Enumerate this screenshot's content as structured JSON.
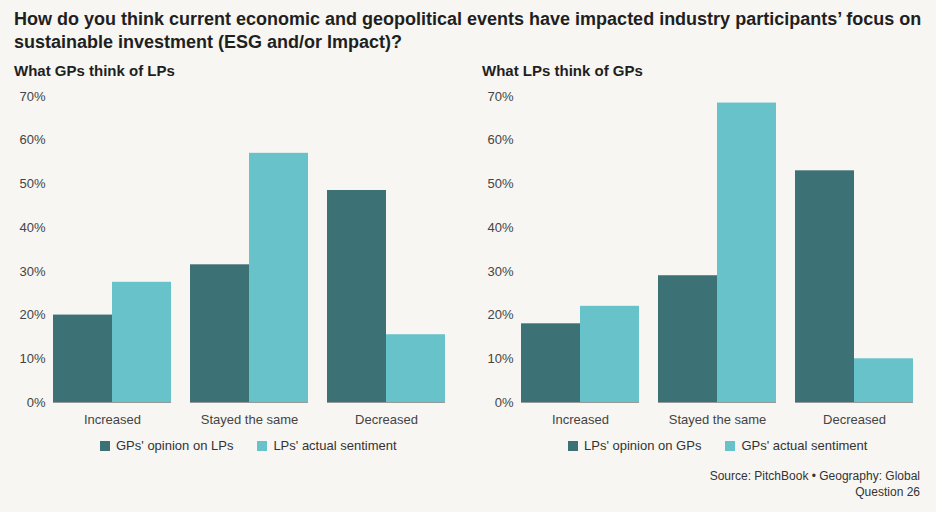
{
  "title": "How do you think current economic and geopolitical events have impacted industry participants’ focus on sustainable investment (ESG and/or Impact)?",
  "source": "Source: PitchBook • Geography: Global",
  "footnote": "Question 26",
  "chart_data": [
    {
      "type": "bar",
      "title": "What GPs think of LPs",
      "categories": [
        "Increased",
        "Stayed the same",
        "Decreased"
      ],
      "series": [
        {
          "name": "GPs' opinion on LPs",
          "color": "#3c7176",
          "values": [
            20,
            31.5,
            48.5
          ]
        },
        {
          "name": "LPs' actual sentiment",
          "color": "#68c2ca",
          "values": [
            27.5,
            57,
            15.5
          ]
        }
      ],
      "ylim": [
        0,
        70
      ],
      "yticks": [
        {
          "value": 0,
          "label": "0%"
        },
        {
          "value": 10,
          "label": "10%"
        },
        {
          "value": 20,
          "label": "20%"
        },
        {
          "value": 30,
          "label": "30%"
        },
        {
          "value": 40,
          "label": "40%"
        },
        {
          "value": 50,
          "label": "50%"
        },
        {
          "value": 60,
          "label": "60%"
        },
        {
          "value": 70,
          "label": "70%"
        }
      ],
      "grid": false,
      "legend": "bottom"
    },
    {
      "type": "bar",
      "title": "What LPs think of GPs",
      "categories": [
        "Increased",
        "Stayed the same",
        "Decreased"
      ],
      "series": [
        {
          "name": "LPs' opinion on GPs",
          "color": "#3c7176",
          "values": [
            18,
            29,
            53
          ]
        },
        {
          "name": "GPs' actual sentiment",
          "color": "#68c2ca",
          "values": [
            22,
            68.5,
            10
          ]
        }
      ],
      "ylim": [
        0,
        70
      ],
      "yticks": [
        {
          "value": 0,
          "label": "0%"
        },
        {
          "value": 10,
          "label": "10%"
        },
        {
          "value": 20,
          "label": "20%"
        },
        {
          "value": 30,
          "label": "30%"
        },
        {
          "value": 40,
          "label": "40%"
        },
        {
          "value": 50,
          "label": "50%"
        },
        {
          "value": 60,
          "label": "60%"
        },
        {
          "value": 70,
          "label": "70%"
        }
      ],
      "grid": false,
      "legend": "bottom"
    }
  ]
}
